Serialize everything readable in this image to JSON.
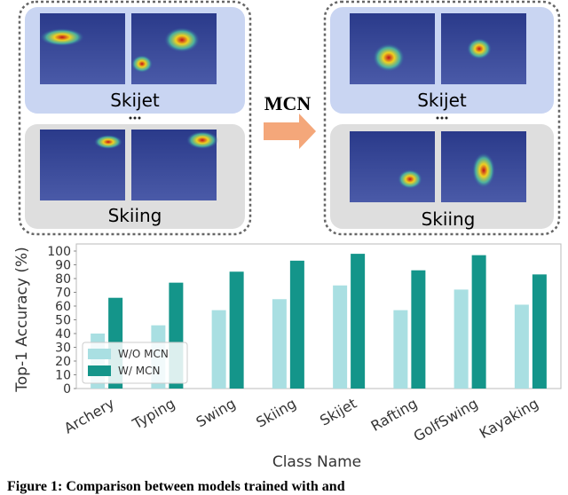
{
  "illustration": {
    "arrow_label": "MCN",
    "left": {
      "top_label": "Skijet",
      "bottom_label": "Skiing"
    },
    "right": {
      "top_label": "Skijet",
      "bottom_label": "Skiing"
    }
  },
  "chart_data": {
    "type": "bar",
    "y_label": "Top-1 Accuracy (%)",
    "x_label": "Class Name",
    "categories": [
      "Archery",
      "Typing",
      "Swing",
      "Skiing",
      "Skijet",
      "Rafting",
      "GolfSwing",
      "Kayaking"
    ],
    "series": [
      {
        "name": "W/O MCN",
        "color": "#a9dfe2",
        "values": [
          40,
          46,
          57,
          65,
          75,
          57,
          72,
          61
        ]
      },
      {
        "name": "W/ MCN",
        "color": "#14958a",
        "values": [
          66,
          77,
          85,
          93,
          98,
          86,
          97,
          83
        ]
      }
    ],
    "ylim": [
      0,
      100
    ],
    "yticks": [
      0,
      10,
      20,
      30,
      40,
      50,
      60,
      70,
      80,
      90,
      100
    ],
    "legend": "lower left"
  },
  "caption": "Figure 1: Comparison between models trained with and"
}
